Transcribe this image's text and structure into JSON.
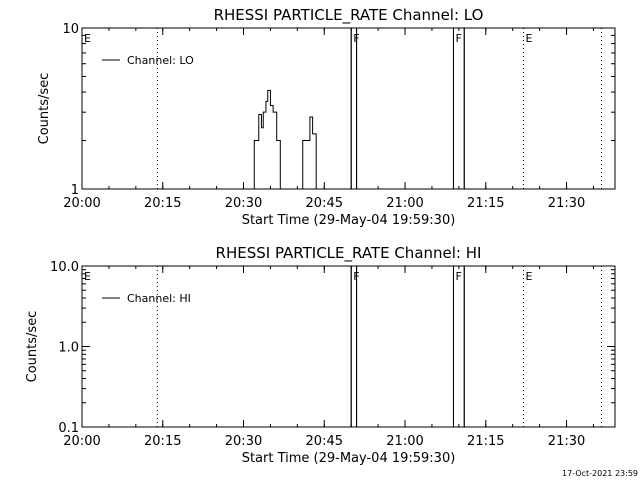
{
  "footer": {
    "timestamp": "17-Oct-2021 23:59"
  },
  "chart_data": [
    {
      "type": "line",
      "title": "RHESSI PARTICLE_RATE Channel: LO",
      "xlabel": "Start Time (29-May-04 19:59:30)",
      "ylabel": "Counts/sec",
      "xscale": "time",
      "yscale": "log",
      "xlim": [
        "20:00:00",
        "21:39:00"
      ],
      "ylim": [
        1,
        10
      ],
      "xticks": [
        "20:00",
        "20:15",
        "20:30",
        "20:45",
        "21:00",
        "21:15",
        "21:30"
      ],
      "yticks": [
        {
          "value": 1,
          "label": "1"
        },
        {
          "value": 10,
          "label": "10"
        }
      ],
      "legend": {
        "position": "top-left",
        "entries": [
          "Channel: LO"
        ]
      },
      "flag_lines": [
        {
          "type": "dotted",
          "time": "20:14:00"
        },
        {
          "type": "solid",
          "time": "20:50:00"
        },
        {
          "type": "solid",
          "time": "20:51:00"
        },
        {
          "type": "solid",
          "time": "21:09:00"
        },
        {
          "type": "solid",
          "time": "21:11:00"
        },
        {
          "type": "dotted",
          "time": "21:22:00"
        },
        {
          "type": "dotted",
          "time": "21:36:30"
        }
      ],
      "flag_labels": [
        {
          "text": "E",
          "time": "20:00:00"
        },
        {
          "text": "F",
          "time": "20:50:00"
        },
        {
          "text": "F",
          "time": "21:09:00"
        },
        {
          "text": "E",
          "time": "21:22:00"
        }
      ],
      "series": [
        {
          "name": "Channel: LO",
          "points": [
            [
              "20:00:00",
              1
            ],
            [
              "20:32:00",
              1
            ],
            [
              "20:32:00",
              2
            ],
            [
              "20:32:50",
              2
            ],
            [
              "20:32:50",
              2.9
            ],
            [
              "20:33:20",
              2.9
            ],
            [
              "20:33:20",
              2.4
            ],
            [
              "20:33:40",
              2.4
            ],
            [
              "20:33:40",
              3
            ],
            [
              "20:34:10",
              3
            ],
            [
              "20:34:10",
              3.5
            ],
            [
              "20:34:30",
              3.5
            ],
            [
              "20:34:30",
              4.1
            ],
            [
              "20:35:00",
              4.1
            ],
            [
              "20:35:00",
              3.3
            ],
            [
              "20:35:30",
              3.3
            ],
            [
              "20:35:30",
              3
            ],
            [
              "20:36:10",
              3
            ],
            [
              "20:36:10",
              2
            ],
            [
              "20:36:50",
              2
            ],
            [
              "20:36:50",
              1
            ],
            [
              "20:41:00",
              1
            ],
            [
              "20:41:00",
              2
            ],
            [
              "20:42:20",
              2
            ],
            [
              "20:42:20",
              2.8
            ],
            [
              "20:42:50",
              2.8
            ],
            [
              "20:42:50",
              2.2
            ],
            [
              "20:43:30",
              2.2
            ],
            [
              "20:43:30",
              1
            ],
            [
              "20:49:30",
              1
            ],
            [
              "20:50:00",
              1
            ],
            [
              "20:50:00",
              10
            ],
            [
              "20:51:00",
              10
            ],
            [
              "20:51:00",
              1
            ],
            [
              "21:09:00",
              1
            ],
            [
              "21:09:00",
              10
            ],
            [
              "21:11:00",
              10
            ],
            [
              "21:11:00",
              1
            ],
            [
              "21:39:00",
              1
            ]
          ]
        }
      ]
    },
    {
      "type": "line",
      "title": "RHESSI PARTICLE_RATE Channel: HI",
      "xlabel": "Start Time (29-May-04 19:59:30)",
      "ylabel": "Counts/sec",
      "xscale": "time",
      "yscale": "log",
      "xlim": [
        "20:00:00",
        "21:39:00"
      ],
      "ylim": [
        0.1,
        10
      ],
      "xticks": [
        "20:00",
        "20:15",
        "20:30",
        "20:45",
        "21:00",
        "21:15",
        "21:30"
      ],
      "yticks": [
        {
          "value": 0.1,
          "label": "0.1"
        },
        {
          "value": 1,
          "label": "1.0"
        },
        {
          "value": 10,
          "label": "10.0"
        }
      ],
      "legend": {
        "position": "top-left",
        "entries": [
          "Channel: HI"
        ]
      },
      "flag_lines": [
        {
          "type": "dotted",
          "time": "20:14:00"
        },
        {
          "type": "solid",
          "time": "20:50:00"
        },
        {
          "type": "solid",
          "time": "20:51:00"
        },
        {
          "type": "solid",
          "time": "21:09:00"
        },
        {
          "type": "solid",
          "time": "21:11:00"
        },
        {
          "type": "dotted",
          "time": "21:22:00"
        },
        {
          "type": "dotted",
          "time": "21:36:30"
        }
      ],
      "flag_labels": [
        {
          "text": "E",
          "time": "20:00:00"
        },
        {
          "text": "F",
          "time": "20:50:00"
        },
        {
          "text": "F",
          "time": "21:09:00"
        },
        {
          "text": "E",
          "time": "21:22:00"
        }
      ],
      "series": [
        {
          "name": "Channel: HI",
          "points": [
            [
              "20:00:00",
              0.1
            ],
            [
              "20:50:00",
              0.1
            ],
            [
              "20:50:00",
              10
            ],
            [
              "20:51:00",
              10
            ],
            [
              "20:51:00",
              0.1
            ],
            [
              "21:09:00",
              0.1
            ],
            [
              "21:09:00",
              10
            ],
            [
              "21:11:00",
              10
            ],
            [
              "21:11:00",
              0.1
            ],
            [
              "21:39:00",
              0.1
            ]
          ]
        }
      ]
    }
  ]
}
